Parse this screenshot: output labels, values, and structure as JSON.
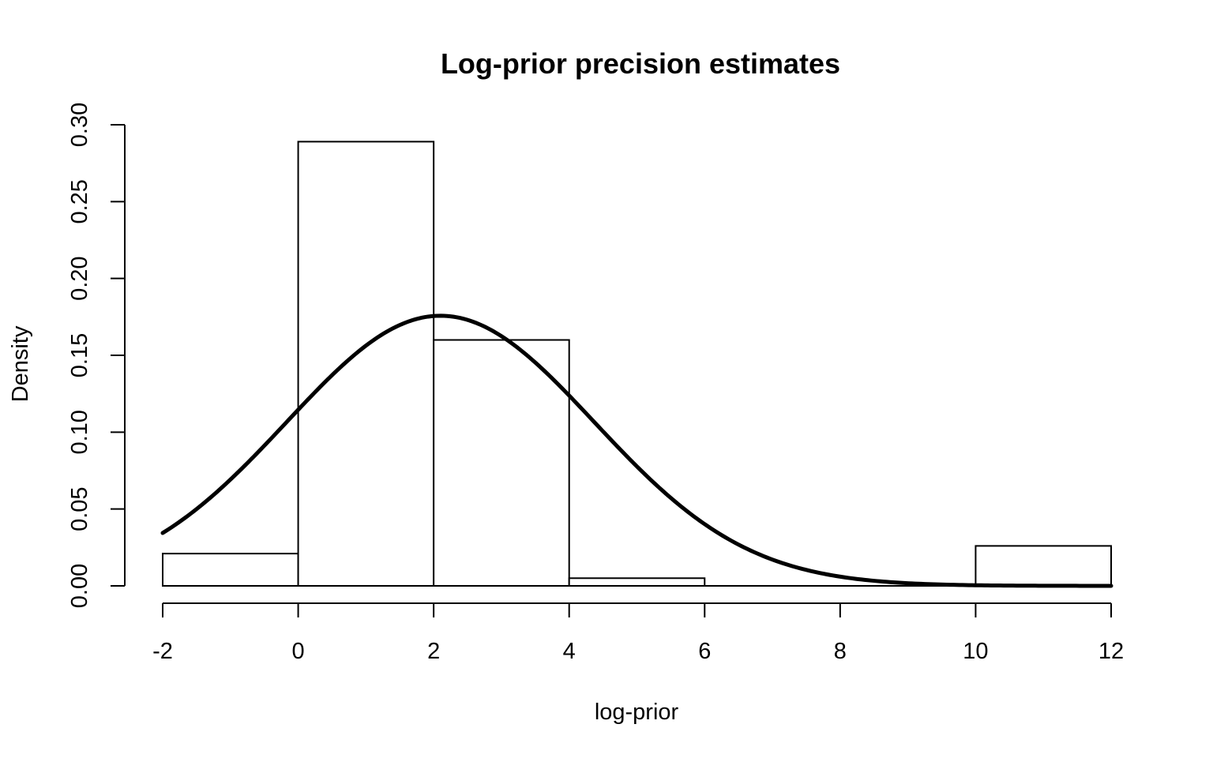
{
  "chart_data": {
    "type": "bar",
    "title": "Log-prior precision estimates",
    "xlabel": "log-prior",
    "ylabel": "Density",
    "xlim": [
      -2,
      12
    ],
    "ylim": [
      0,
      0.3
    ],
    "x_ticks": [
      "-2",
      "0",
      "2",
      "4",
      "6",
      "8",
      "10",
      "12"
    ],
    "x_tick_values": [
      -2,
      0,
      2,
      4,
      6,
      8,
      10,
      12
    ],
    "y_ticks": [
      "0.00",
      "0.05",
      "0.10",
      "0.15",
      "0.20",
      "0.25",
      "0.30"
    ],
    "y_tick_values": [
      0,
      0.05,
      0.1,
      0.15,
      0.2,
      0.25,
      0.3
    ],
    "grid": false,
    "histogram": {
      "bins": [
        {
          "x0": -2,
          "x1": 0,
          "density": 0.021
        },
        {
          "x0": 0,
          "x1": 2,
          "density": 0.289
        },
        {
          "x0": 2,
          "x1": 4,
          "density": 0.16
        },
        {
          "x0": 4,
          "x1": 6,
          "density": 0.005
        },
        {
          "x0": 6,
          "x1": 8,
          "density": 0.0
        },
        {
          "x0": 8,
          "x1": 10,
          "density": 0.0
        },
        {
          "x0": 10,
          "x1": 12,
          "density": 0.026
        }
      ]
    },
    "density_curve": {
      "distribution": "normal",
      "mean": 2.1,
      "sd": 2.27,
      "x_range": [
        -2,
        12
      ]
    },
    "colors": {
      "bar_fill": "#ffffff",
      "stroke": "#000000"
    }
  }
}
